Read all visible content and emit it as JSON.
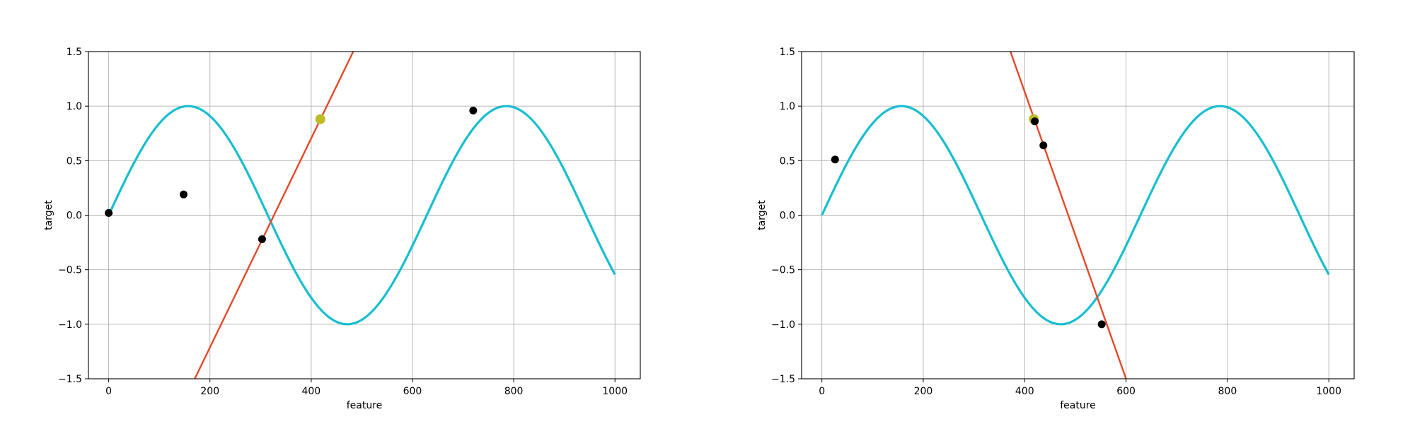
{
  "chart_data": [
    {
      "type": "line",
      "title": "",
      "xlabel": "feature",
      "ylabel": "target",
      "xlim": [
        -40,
        1050
      ],
      "ylim": [
        -1.5,
        1.5
      ],
      "xticks": [
        0,
        200,
        400,
        600,
        800,
        1000
      ],
      "yticks": [
        -1.5,
        -1.0,
        -0.5,
        0.0,
        0.5,
        1.0,
        1.5
      ],
      "xtick_labels": [
        "0",
        "200",
        "400",
        "600",
        "800",
        "1000"
      ],
      "ytick_labels": [
        "−1.5",
        "−1.0",
        "−0.5",
        "0.0",
        "0.5",
        "1.0",
        "1.5"
      ],
      "grid": true,
      "curve": {
        "function": "sin(x/100)",
        "x_range": [
          0,
          1000
        ],
        "color": "#17becf"
      },
      "points": [
        {
          "x": 0,
          "y": 0.02
        },
        {
          "x": 148,
          "y": 0.19
        },
        {
          "x": 303,
          "y": -0.22
        },
        {
          "x": 720,
          "y": 0.96
        }
      ],
      "points_color": "#000000",
      "highlight_point": {
        "x": 418,
        "y": 0.88,
        "color": "#bcbd22"
      },
      "fit_line": {
        "x": [
          170,
          483
        ],
        "y": [
          -1.5,
          1.5
        ],
        "color": "#e5482a"
      }
    },
    {
      "type": "line",
      "title": "",
      "xlabel": "feature",
      "ylabel": "target",
      "xlim": [
        -40,
        1050
      ],
      "ylim": [
        -1.5,
        1.5
      ],
      "xticks": [
        0,
        200,
        400,
        600,
        800,
        1000
      ],
      "yticks": [
        -1.5,
        -1.0,
        -0.5,
        0.0,
        0.5,
        1.0,
        1.5
      ],
      "xtick_labels": [
        "0",
        "200",
        "400",
        "600",
        "800",
        "1000"
      ],
      "ytick_labels": [
        "−1.5",
        "−1.0",
        "−0.5",
        "0.0",
        "0.5",
        "1.0",
        "1.5"
      ],
      "grid": true,
      "curve": {
        "function": "sin(x/100)",
        "x_range": [
          0,
          1000
        ],
        "color": "#17becf"
      },
      "points": [
        {
          "x": 26,
          "y": 0.51
        },
        {
          "x": 420,
          "y": 0.86
        },
        {
          "x": 437,
          "y": 0.64
        },
        {
          "x": 552,
          "y": -1.0
        }
      ],
      "points_color": "#000000",
      "highlight_point": {
        "x": 418,
        "y": 0.88,
        "color": "#bcbd22"
      },
      "fit_line": {
        "x": [
          372,
          600
        ],
        "y": [
          1.5,
          -1.5
        ],
        "color": "#e5482a"
      }
    }
  ]
}
